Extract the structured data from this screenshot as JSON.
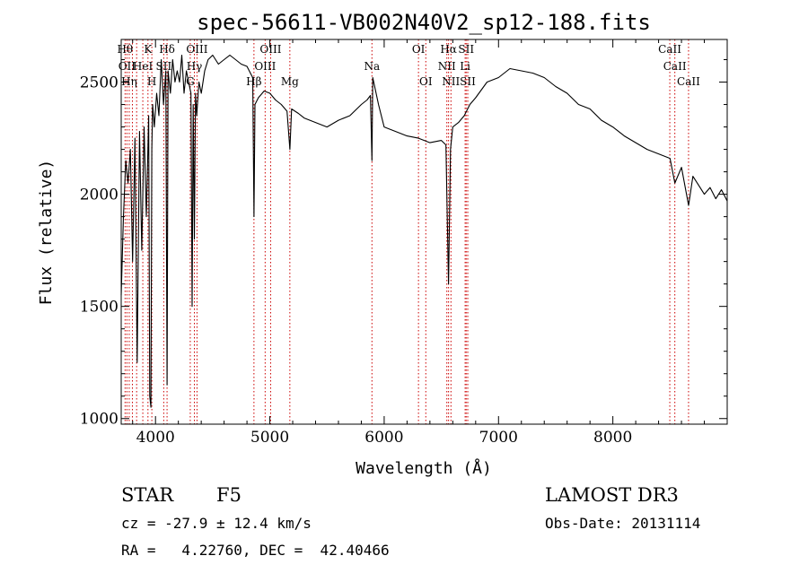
{
  "chart_data": {
    "type": "line",
    "title": "spec-56611-VB002N40V2_sp12-188.fits",
    "xlabel": "Wavelength (Å)",
    "ylabel": "Flux (relative)",
    "xlim": [
      3700,
      9000
    ],
    "ylim": [
      975,
      2690
    ],
    "xticks": [
      {
        "value": 4000,
        "label": "4000"
      },
      {
        "value": 5000,
        "label": "5000"
      },
      {
        "value": 6000,
        "label": "6000"
      },
      {
        "value": 7000,
        "label": "7000"
      },
      {
        "value": 8000,
        "label": "8000"
      }
    ],
    "yticks": [
      {
        "value": 1000,
        "label": "1000"
      },
      {
        "value": 1500,
        "label": "1500"
      },
      {
        "value": 2000,
        "label": "2000"
      },
      {
        "value": 2500,
        "label": "2500"
      }
    ],
    "line_color": "#000000",
    "marker_color": "#cc0000",
    "series": [
      {
        "name": "spectrum",
        "x": [
          3700,
          3720,
          3740,
          3760,
          3780,
          3800,
          3820,
          3840,
          3860,
          3880,
          3900,
          3920,
          3940,
          3950,
          3960,
          3968,
          3975,
          3990,
          4010,
          4030,
          4050,
          4070,
          4090,
          4101,
          4110,
          4130,
          4150,
          4170,
          4190,
          4210,
          4230,
          4250,
          4270,
          4290,
          4310,
          4320,
          4330,
          4340,
          4350,
          4360,
          4380,
          4400,
          4430,
          4460,
          4500,
          4550,
          4600,
          4650,
          4700,
          4750,
          4800,
          4830,
          4850,
          4861,
          4870,
          4900,
          4950,
          5000,
          5050,
          5100,
          5150,
          5175,
          5190,
          5250,
          5300,
          5400,
          5500,
          5600,
          5700,
          5800,
          5850,
          5880,
          5893,
          5900,
          5950,
          6000,
          6100,
          6200,
          6300,
          6400,
          6500,
          6540,
          6563,
          6580,
          6600,
          6650,
          6700,
          6750,
          6800,
          6900,
          7000,
          7100,
          7200,
          7300,
          7400,
          7500,
          7600,
          7700,
          7800,
          7900,
          8000,
          8100,
          8200,
          8300,
          8400,
          8500,
          8542,
          8600,
          8662,
          8700,
          8750,
          8800,
          8850,
          8900,
          8950,
          9000
        ],
        "values": [
          1550,
          1900,
          2150,
          2050,
          2200,
          1700,
          2250,
          1250,
          2280,
          1750,
          2300,
          1900,
          2350,
          1100,
          1050,
          2200,
          2400,
          2300,
          2450,
          2350,
          2600,
          2400,
          2550,
          1150,
          2550,
          2450,
          2600,
          2500,
          2550,
          2500,
          2620,
          2450,
          2550,
          2500,
          2450,
          1500,
          2400,
          1800,
          2450,
          2350,
          2500,
          2450,
          2550,
          2600,
          2620,
          2580,
          2600,
          2620,
          2600,
          2580,
          2570,
          2540,
          2520,
          1900,
          2400,
          2430,
          2460,
          2450,
          2420,
          2400,
          2370,
          2200,
          2380,
          2360,
          2340,
          2320,
          2300,
          2330,
          2350,
          2400,
          2420,
          2440,
          2150,
          2520,
          2400,
          2300,
          2280,
          2260,
          2250,
          2230,
          2240,
          2220,
          1600,
          2200,
          2300,
          2320,
          2350,
          2400,
          2430,
          2500,
          2520,
          2560,
          2550,
          2540,
          2520,
          2480,
          2450,
          2400,
          2380,
          2330,
          2300,
          2260,
          2230,
          2200,
          2180,
          2160,
          2050,
          2120,
          1950,
          2080,
          2040,
          2000,
          2030,
          1980,
          2020,
          1970
        ]
      }
    ],
    "spectral_lines": [
      {
        "x": 3734,
        "label": "Hθ",
        "row": 0
      },
      {
        "x": 3750,
        "label": "OII",
        "row": 1
      },
      {
        "x": 3770,
        "label": "Hη",
        "row": 2
      },
      {
        "x": 3798,
        "label": "",
        "row": -1
      },
      {
        "x": 3835,
        "label": "",
        "row": -1
      },
      {
        "x": 3889,
        "label": "HeI",
        "row": 1
      },
      {
        "x": 3934,
        "label": "K",
        "row": 0
      },
      {
        "x": 3968,
        "label": "H",
        "row": 2
      },
      {
        "x": 4072,
        "label": "SII",
        "row": 1
      },
      {
        "x": 4101,
        "label": "Hδ",
        "row": 0
      },
      {
        "x": 4304,
        "label": "G",
        "row": 2
      },
      {
        "x": 4340,
        "label": "Hγ",
        "row": 1
      },
      {
        "x": 4363,
        "label": "OIII",
        "row": 0
      },
      {
        "x": 4861,
        "label": "Hβ",
        "row": 2
      },
      {
        "x": 4959,
        "label": "OIII",
        "row": 1
      },
      {
        "x": 5007,
        "label": "OIII",
        "row": 0
      },
      {
        "x": 5175,
        "label": "Mg",
        "row": 2
      },
      {
        "x": 5893,
        "label": "Na",
        "row": 1
      },
      {
        "x": 6300,
        "label": "OI",
        "row": 0
      },
      {
        "x": 6364,
        "label": "OI",
        "row": 2
      },
      {
        "x": 6548,
        "label": "NII",
        "row": 1
      },
      {
        "x": 6563,
        "label": "Hα",
        "row": 0
      },
      {
        "x": 6584,
        "label": "NII",
        "row": 2
      },
      {
        "x": 6708,
        "label": "Li",
        "row": 1
      },
      {
        "x": 6717,
        "label": "SII",
        "row": 0
      },
      {
        "x": 6731,
        "label": "SII",
        "row": 2
      },
      {
        "x": 8498,
        "label": "CaII",
        "row": 0
      },
      {
        "x": 8542,
        "label": "CaII",
        "row": 1
      },
      {
        "x": 8662,
        "label": "CaII",
        "row": 2
      }
    ]
  },
  "info": {
    "class_type": "STAR",
    "subclass": "F5",
    "survey": "LAMOST DR3",
    "redshift": "cz = -27.9 ± 12.4 km/s",
    "obs_date": "Obs-Date: 20131114",
    "coords": "RA =   4.22760, DEC =  42.40466"
  }
}
